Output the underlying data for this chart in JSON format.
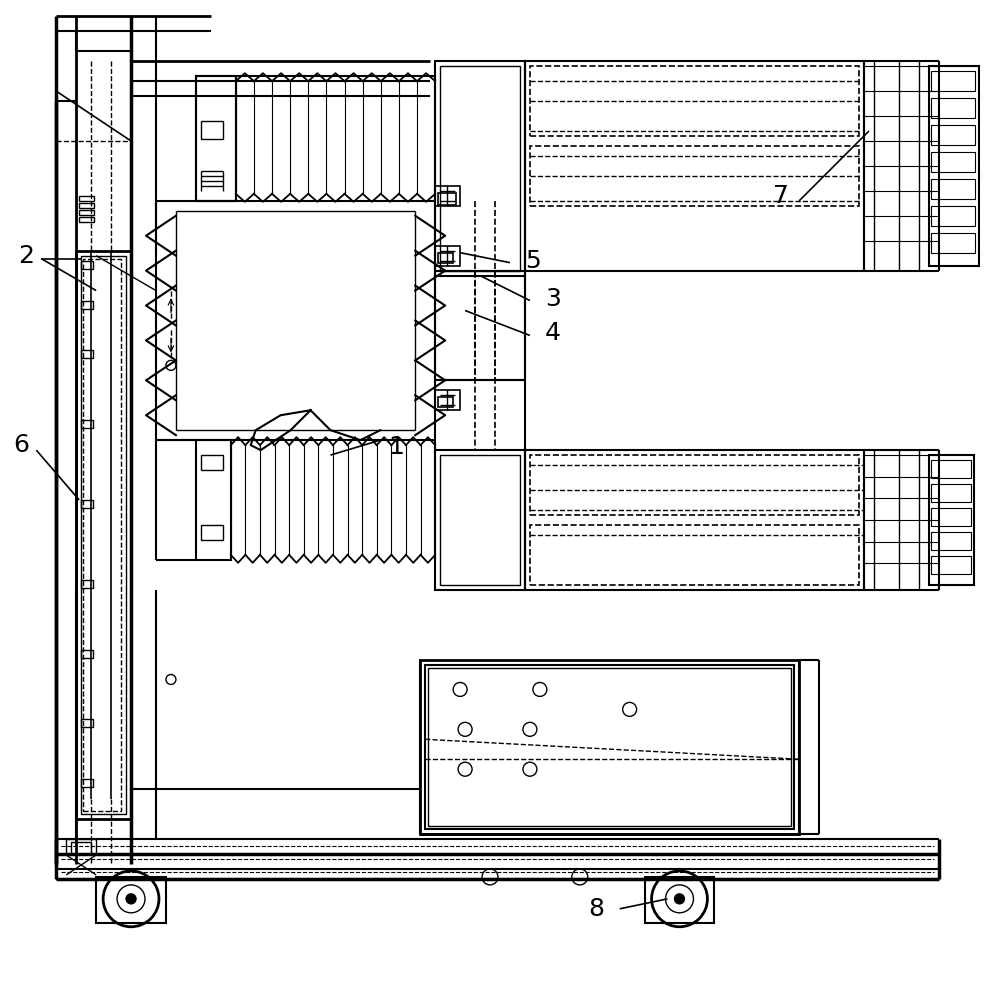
{
  "figure_width": 10.0,
  "figure_height": 9.86,
  "dpi": 100,
  "bg_color": "#ffffff",
  "line_color": "#000000",
  "label_fontsize": 18
}
